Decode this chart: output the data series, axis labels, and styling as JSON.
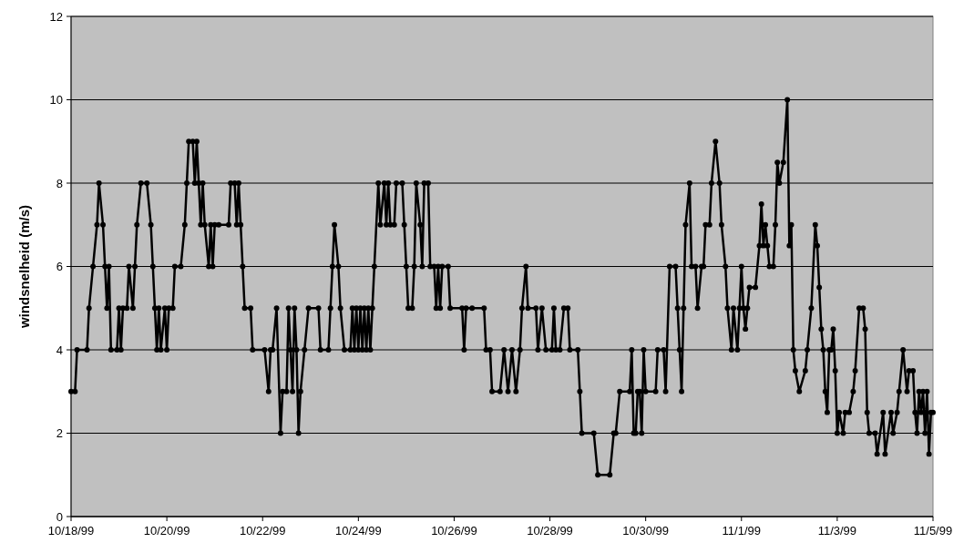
{
  "chart_data": {
    "type": "line",
    "ylabel": "windsnelheid (m/s)",
    "marker": "circle",
    "line_style": "solid",
    "grid": "y",
    "xlim": [
      "1999-10-18",
      "1999-11-05"
    ],
    "ylim": [
      0,
      12
    ],
    "yticks": [
      0,
      2,
      4,
      6,
      8,
      10,
      12
    ],
    "xticks": [
      {
        "value": "1999-10-18",
        "label": "10/18/99"
      },
      {
        "value": "1999-10-20",
        "label": "10/20/99"
      },
      {
        "value": "1999-10-22",
        "label": "10/22/99"
      },
      {
        "value": "1999-10-24",
        "label": "10/24/99"
      },
      {
        "value": "1999-10-26",
        "label": "10/26/99"
      },
      {
        "value": "1999-10-28",
        "label": "10/28/99"
      },
      {
        "value": "1999-10-30",
        "label": "10/30/99"
      },
      {
        "value": "1999-11-01",
        "label": "11/1/99"
      },
      {
        "value": "1999-11-03",
        "label": "11/3/99"
      },
      {
        "value": "1999-11-05",
        "label": "11/5/99"
      }
    ],
    "series": [
      {
        "color": "#000000",
        "x": [
          "1999-10-18T00:00",
          "1999-10-18T02:00",
          "1999-10-18T03:00",
          "1999-10-18T08:00",
          "1999-10-18T09:00",
          "1999-10-18T11:00",
          "1999-10-18T13:00",
          "1999-10-18T14:00",
          "1999-10-18T16:00",
          "1999-10-18T17:00",
          "1999-10-18T18:00",
          "1999-10-18T19:00",
          "1999-10-18T20:00",
          "1999-10-18T23:00",
          "1999-10-19T00:00",
          "1999-10-19T01:00",
          "1999-10-19T02:00",
          "1999-10-19T04:00",
          "1999-10-19T05:00",
          "1999-10-19T07:00",
          "1999-10-19T08:00",
          "1999-10-19T09:00",
          "1999-10-19T11:00",
          "1999-10-19T14:00",
          "1999-10-19T16:00",
          "1999-10-19T17:00",
          "1999-10-19T18:00",
          "1999-10-19T19:00",
          "1999-10-19T20:00",
          "1999-10-19T21:00",
          "1999-10-19T23:00",
          "1999-10-20T00:00",
          "1999-10-20T01:00",
          "1999-10-20T03:00",
          "1999-10-20T04:00",
          "1999-10-20T07:00",
          "1999-10-20T09:00",
          "1999-10-20T10:00",
          "1999-10-20T11:00",
          "1999-10-20T13:00",
          "1999-10-20T14:00",
          "1999-10-20T15:00",
          "1999-10-20T16:00",
          "1999-10-20T17:00",
          "1999-10-20T18:00",
          "1999-10-20T19:00",
          "1999-10-20T21:00",
          "1999-10-20T22:00",
          "1999-10-20T23:00",
          "1999-10-21T00:00",
          "1999-10-21T02:00",
          "1999-10-21T07:00",
          "1999-10-21T08:00",
          "1999-10-21T10:00",
          "1999-10-21T11:00",
          "1999-10-21T12:00",
          "1999-10-21T13:00",
          "1999-10-21T14:00",
          "1999-10-21T15:00",
          "1999-10-21T18:00",
          "1999-10-21T19:00",
          "1999-10-22T01:00",
          "1999-10-22T03:00",
          "1999-10-22T04:00",
          "1999-10-22T05:00",
          "1999-10-22T07:00",
          "1999-10-22T09:00",
          "1999-10-22T10:00",
          "1999-10-22T12:00",
          "1999-10-22T13:00",
          "1999-10-22T14:00",
          "1999-10-22T15:00",
          "1999-10-22T16:00",
          "1999-10-22T17:00",
          "1999-10-22T18:00",
          "1999-10-22T19:00",
          "1999-10-22T21:00",
          "1999-10-22T23:00",
          "1999-10-23T04:00",
          "1999-10-23T05:00",
          "1999-10-23T09:00",
          "1999-10-23T10:00",
          "1999-10-23T11:00",
          "1999-10-23T12:00",
          "1999-10-23T14:00",
          "1999-10-23T15:00",
          "1999-10-23T17:00",
          "1999-10-23T20:00",
          "1999-10-23T21:00",
          "1999-10-23T22:00",
          "1999-10-23T23:00",
          "1999-10-24T00:00",
          "1999-10-24T01:00",
          "1999-10-24T02:00",
          "1999-10-24T03:00",
          "1999-10-24T04:00",
          "1999-10-24T05:00",
          "1999-10-24T06:00",
          "1999-10-24T07:00",
          "1999-10-24T08:00",
          "1999-10-24T10:00",
          "1999-10-24T11:00",
          "1999-10-24T13:00",
          "1999-10-24T14:00",
          "1999-10-24T15:00",
          "1999-10-24T16:00",
          "1999-10-24T18:00",
          "1999-10-24T19:00",
          "1999-10-24T22:00",
          "1999-10-24T23:00",
          "1999-10-25T00:00",
          "1999-10-25T01:00",
          "1999-10-25T03:00",
          "1999-10-25T04:00",
          "1999-10-25T05:00",
          "1999-10-25T07:00",
          "1999-10-25T08:00",
          "1999-10-25T09:00",
          "1999-10-25T11:00",
          "1999-10-25T12:00",
          "1999-10-25T14:00",
          "1999-10-25T15:00",
          "1999-10-25T16:00",
          "1999-10-25T17:00",
          "1999-10-25T18:00",
          "1999-10-25T21:00",
          "1999-10-25T22:00",
          "1999-10-26T04:00",
          "1999-10-26T05:00",
          "1999-10-26T06:00",
          "1999-10-26T09:00",
          "1999-10-26T15:00",
          "1999-10-26T16:00",
          "1999-10-26T18:00",
          "1999-10-26T19:00",
          "1999-10-26T23:00",
          "1999-10-27T01:00",
          "1999-10-27T03:00",
          "1999-10-27T05:00",
          "1999-10-27T07:00",
          "1999-10-27T09:00",
          "1999-10-27T10:00",
          "1999-10-27T12:00",
          "1999-10-27T13:00",
          "1999-10-27T17:00",
          "1999-10-27T18:00",
          "1999-10-27T20:00",
          "1999-10-27T22:00",
          "1999-10-28T01:00",
          "1999-10-28T02:00",
          "1999-10-28T03:00",
          "1999-10-28T05:00",
          "1999-10-28T07:00",
          "1999-10-28T09:00",
          "1999-10-28T10:00",
          "1999-10-28T14:00",
          "1999-10-28T15:00",
          "1999-10-28T16:00",
          "1999-10-28T22:00",
          "1999-10-29T00:00",
          "1999-10-29T06:00",
          "1999-10-29T08:00",
          "1999-10-29T09:00",
          "1999-10-29T11:00",
          "1999-10-29T16:00",
          "1999-10-29T17:00",
          "1999-10-29T18:00",
          "1999-10-29T19:00",
          "1999-10-29T20:00",
          "1999-10-29T21:00",
          "1999-10-29T22:00",
          "1999-10-29T23:00",
          "1999-10-30T00:00",
          "1999-10-30T05:00",
          "1999-10-30T06:00",
          "1999-10-30T09:00",
          "1999-10-30T10:00",
          "1999-10-30T12:00",
          "1999-10-30T15:00",
          "1999-10-30T16:00",
          "1999-10-30T17:00",
          "1999-10-30T18:00",
          "1999-10-30T19:00",
          "1999-10-30T20:00",
          "1999-10-30T22:00",
          "1999-10-30T23:00",
          "1999-10-31T01:00",
          "1999-10-31T02:00",
          "1999-10-31T04:00",
          "1999-10-31T05:00",
          "1999-10-31T06:00",
          "1999-10-31T08:00",
          "1999-10-31T09:00",
          "1999-10-31T11:00",
          "1999-10-31T13:00",
          "1999-10-31T14:00",
          "1999-10-31T16:00",
          "1999-10-31T17:00",
          "1999-10-31T19:00",
          "1999-10-31T20:00",
          "1999-10-31T22:00",
          "1999-10-31T23:00",
          "1999-11-01T00:00",
          "1999-11-01T01:00",
          "1999-11-01T02:00",
          "1999-11-01T03:00",
          "1999-11-01T04:00",
          "1999-11-01T07:00",
          "1999-11-01T09:00",
          "1999-11-01T10:00",
          "1999-11-01T11:00",
          "1999-11-01T12:00",
          "1999-11-01T13:00",
          "1999-11-01T14:00",
          "1999-11-01T16:00",
          "1999-11-01T17:00",
          "1999-11-01T18:00",
          "1999-11-01T19:00",
          "1999-11-01T21:00",
          "1999-11-01T23:00",
          "1999-11-02T00:00",
          "1999-11-02T01:00",
          "1999-11-02T02:00",
          "1999-11-02T03:00",
          "1999-11-02T05:00",
          "1999-11-02T08:00",
          "1999-11-02T09:00",
          "1999-11-02T11:00",
          "1999-11-02T13:00",
          "1999-11-02T14:00",
          "1999-11-02T15:00",
          "1999-11-02T16:00",
          "1999-11-02T17:00",
          "1999-11-02T18:00",
          "1999-11-02T19:00",
          "1999-11-02T20:00",
          "1999-11-02T21:00",
          "1999-11-02T22:00",
          "1999-11-02T23:00",
          "1999-11-03T00:00",
          "1999-11-03T01:00",
          "1999-11-03T03:00",
          "1999-11-03T04:00",
          "1999-11-03T06:00",
          "1999-11-03T08:00",
          "1999-11-03T09:00",
          "1999-11-03T11:00",
          "1999-11-03T13:00",
          "1999-11-03T14:00",
          "1999-11-03T15:00",
          "1999-11-03T16:00",
          "1999-11-03T19:00",
          "1999-11-03T20:00",
          "1999-11-03T23:00",
          "1999-11-04T00:00",
          "1999-11-04T03:00",
          "1999-11-04T04:00",
          "1999-11-04T06:00",
          "1999-11-04T07:00",
          "1999-11-04T09:00",
          "1999-11-04T11:00",
          "1999-11-04T12:00",
          "1999-11-04T14:00",
          "1999-11-04T15:00",
          "1999-11-04T16:00",
          "1999-11-04T17:00",
          "1999-11-04T18:00",
          "1999-11-04T19:00",
          "1999-11-04T20:00",
          "1999-11-04T21:00",
          "1999-11-04T22:00",
          "1999-11-04T23:00",
          "1999-11-05T00:00"
        ],
        "values": [
          3,
          3,
          4,
          4,
          5,
          6,
          7,
          8,
          7,
          6,
          5,
          6,
          4,
          4,
          5,
          4,
          5,
          5,
          6,
          5,
          6,
          7,
          8,
          8,
          7,
          6,
          5,
          4,
          5,
          4,
          5,
          4,
          5,
          5,
          6,
          6,
          7,
          8,
          9,
          9,
          8,
          9,
          8,
          7,
          8,
          7,
          6,
          7,
          6,
          7,
          7,
          7,
          8,
          8,
          7,
          8,
          7,
          6,
          5,
          5,
          4,
          4,
          3,
          4,
          4,
          5,
          2,
          3,
          3,
          5,
          4,
          3,
          5,
          4,
          2,
          3,
          4,
          5,
          5,
          4,
          4,
          5,
          6,
          7,
          6,
          5,
          4,
          4,
          5,
          4,
          5,
          4,
          5,
          4,
          5,
          4,
          5,
          4,
          5,
          6,
          8,
          7,
          8,
          7,
          8,
          7,
          7,
          8,
          8,
          7,
          6,
          5,
          5,
          6,
          8,
          7,
          6,
          8,
          8,
          6,
          6,
          5,
          6,
          5,
          6,
          6,
          5,
          5,
          4,
          5,
          5,
          5,
          4,
          4,
          3,
          3,
          4,
          3,
          4,
          3,
          4,
          5,
          6,
          5,
          5,
          4,
          5,
          4,
          4,
          5,
          4,
          4,
          5,
          5,
          4,
          4,
          3,
          2,
          2,
          1,
          1,
          2,
          2,
          3,
          3,
          4,
          2,
          2,
          3,
          3,
          2,
          4,
          3,
          3,
          4,
          4,
          3,
          6,
          6,
          5,
          4,
          3,
          5,
          7,
          8,
          6,
          6,
          5,
          6,
          6,
          7,
          7,
          8,
          9,
          8,
          7,
          6,
          5,
          4,
          5,
          4,
          5,
          6,
          5,
          4.5,
          5,
          5.5,
          5.5,
          6.5,
          7.5,
          6.5,
          7,
          6.5,
          6,
          6,
          7,
          8.5,
          8,
          8.5,
          10,
          6.5,
          7,
          4,
          3.5,
          3,
          3.5,
          4,
          5,
          7,
          6.5,
          5.5,
          4.5,
          4,
          3,
          2.5,
          4,
          4,
          4.5,
          3.5,
          2,
          2.5,
          2,
          2.5,
          2.5,
          3,
          3.5,
          5,
          5,
          4.5,
          2.5,
          2,
          2,
          1.5,
          2.5,
          1.5,
          2.5,
          2,
          2.5,
          3,
          4,
          3,
          3.5,
          3.5,
          2.5,
          2,
          3,
          2.5,
          3,
          2,
          3,
          1.5,
          2.5,
          2.5
        ]
      }
    ]
  }
}
